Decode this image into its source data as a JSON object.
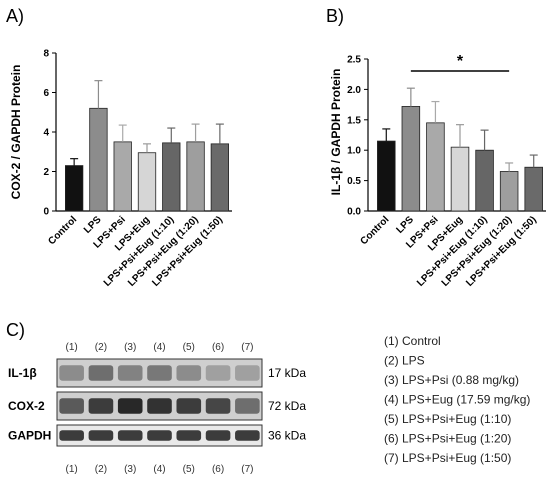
{
  "chart_data": [
    {
      "type": "bar",
      "panel_label": "A)",
      "ylabel": "COX-2 / GAPDH Protein",
      "categories": [
        "Control",
        "LPS",
        "LPS+Psi",
        "LPS+Eug",
        "LPS+Psi+Eug (1:10)",
        "LPS+Psi+Eug (1:20)",
        "LPS+Psi+Eug (1:50)"
      ],
      "values": [
        2.3,
        5.2,
        3.5,
        2.95,
        3.45,
        3.5,
        3.4
      ],
      "errors": [
        0.35,
        1.4,
        0.85,
        0.45,
        0.75,
        0.9,
        1.0
      ],
      "colors": [
        "#111111",
        "#8c8c8c",
        "#a9a9a9",
        "#d6d6d6",
        "#666666",
        "#9e9e9e",
        "#6a6a6a"
      ],
      "ylim": [
        0,
        8
      ],
      "yticks": [
        "0",
        "2",
        "4",
        "6",
        "8"
      ],
      "ytick_values": [
        0,
        2,
        4,
        6,
        8
      ]
    },
    {
      "type": "bar",
      "panel_label": "B)",
      "ylabel": "IL-1β / GAPDH Protein",
      "categories": [
        "Control",
        "LPS",
        "LPS+Psi",
        "LPS+Eug",
        "LPS+Psi+Eug (1:10)",
        "LPS+Psi+Eug (1:20)",
        "LPS+Psi+Eug (1:50)"
      ],
      "values": [
        1.15,
        1.72,
        1.45,
        1.05,
        1.0,
        0.65,
        0.72
      ],
      "errors": [
        0.2,
        0.3,
        0.35,
        0.37,
        0.33,
        0.14,
        0.2
      ],
      "colors": [
        "#111111",
        "#8c8c8c",
        "#a9a9a9",
        "#d6d6d6",
        "#666666",
        "#9e9e9e",
        "#6a6a6a"
      ],
      "ylim": [
        0,
        2.5
      ],
      "yticks": [
        "0.0",
        "0.5",
        "1.0",
        "1.5",
        "2.0",
        "2.5"
      ],
      "ytick_values": [
        0,
        0.5,
        1.0,
        1.5,
        2.0,
        2.5
      ],
      "annotation": "*"
    }
  ],
  "blot": {
    "panel_label": "C)",
    "lanes": [
      "(1)",
      "(2)",
      "(3)",
      "(4)",
      "(5)",
      "(6)",
      "(7)"
    ],
    "rows": [
      {
        "name": "IL-1β",
        "kda": "17 kDa",
        "intensity": [
          0.45,
          0.6,
          0.5,
          0.55,
          0.45,
          0.35,
          0.35
        ]
      },
      {
        "name": "COX-2",
        "kda": "72 kDa",
        "intensity": [
          0.7,
          0.85,
          0.95,
          0.9,
          0.85,
          0.8,
          0.6
        ]
      },
      {
        "name": "GAPDH",
        "kda": "36 kDa",
        "intensity": [
          0.85,
          0.85,
          0.85,
          0.85,
          0.85,
          0.85,
          0.85
        ]
      }
    ]
  },
  "legend": [
    "(1) Control",
    "(2) LPS",
    "(3) LPS+Psi (0.88 mg/kg)",
    "(4) LPS+Eug (17.59 mg/kg)",
    "(5) LPS+Psi+Eug (1:10)",
    "(6) LPS+Psi+Eug (1:20)",
    "(7) LPS+Psi+Eug (1:50)"
  ]
}
